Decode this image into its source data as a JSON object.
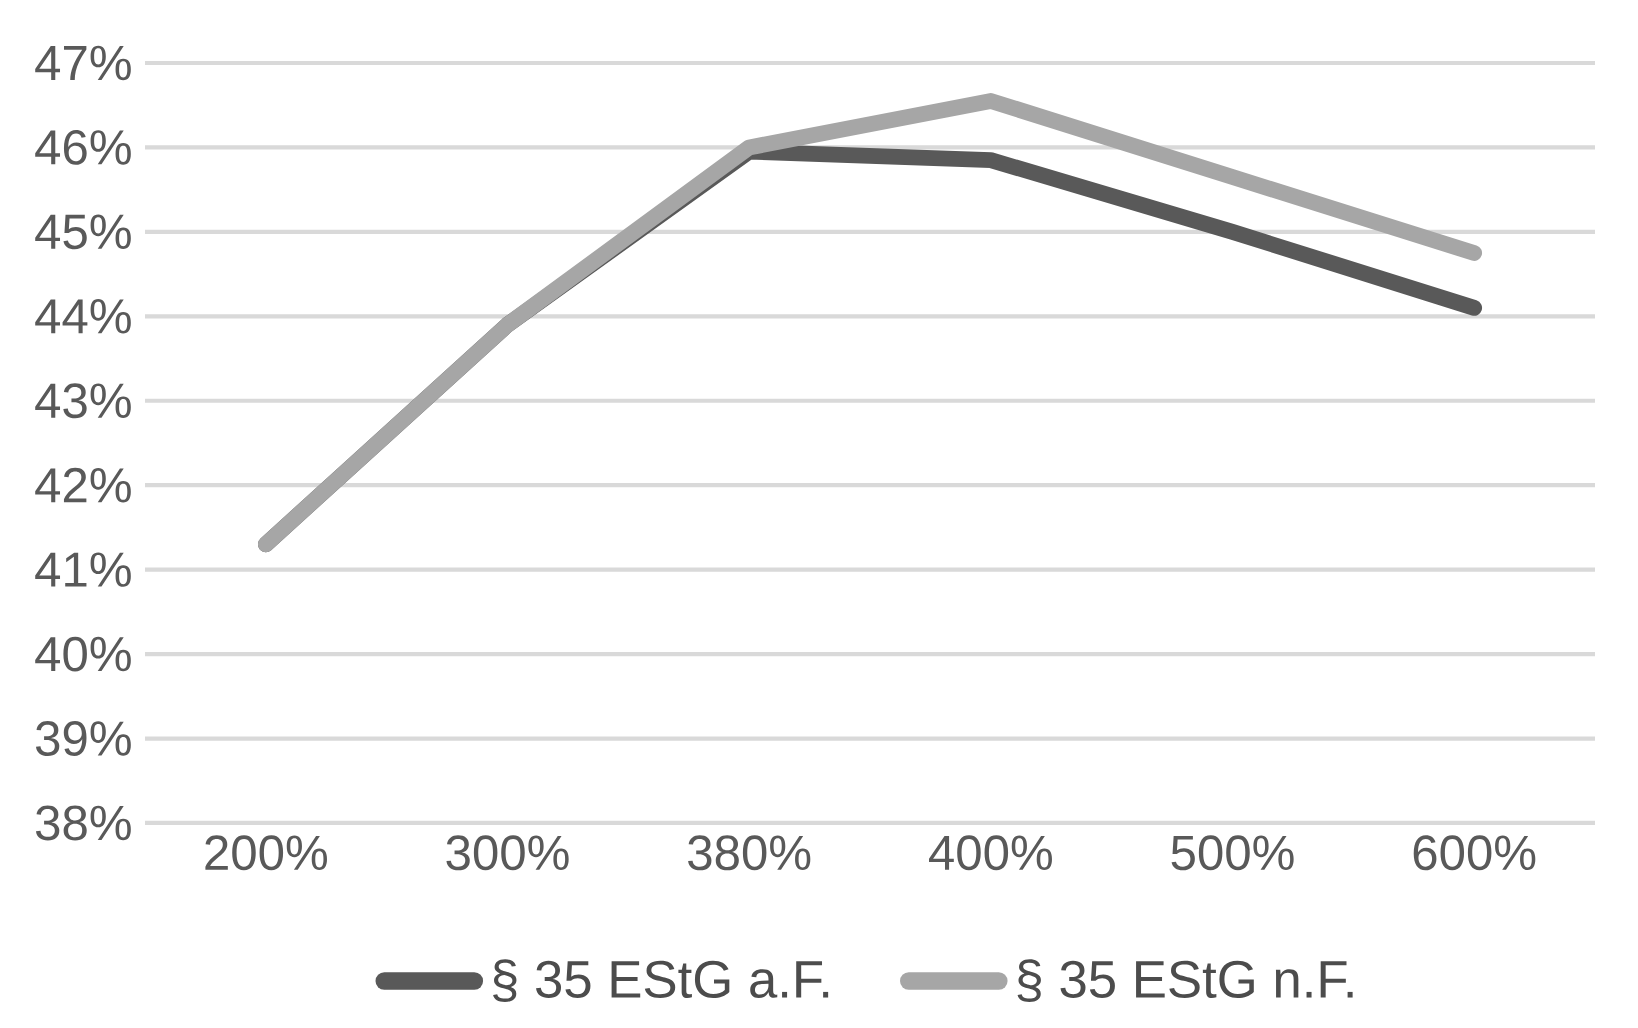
{
  "chart_data": {
    "type": "line",
    "categories": [
      "200%",
      "300%",
      "380%",
      "400%",
      "500%",
      "600%"
    ],
    "series": [
      {
        "name": "§ 35 EStG a.F.",
        "color": "#595959",
        "values": [
          41.3,
          43.9,
          45.95,
          45.85,
          45.0,
          44.1
        ]
      },
      {
        "name": "§ 35 EStG n.F.",
        "color": "#a6a6a6",
        "values": [
          41.3,
          43.9,
          46.0,
          46.55,
          45.65,
          44.75
        ]
      }
    ],
    "ylim": [
      38,
      47
    ],
    "yticks": [
      {
        "value": 38,
        "label": "38%"
      },
      {
        "value": 39,
        "label": "39%"
      },
      {
        "value": 40,
        "label": "40%"
      },
      {
        "value": 41,
        "label": "41%"
      },
      {
        "value": 42,
        "label": "42%"
      },
      {
        "value": 43,
        "label": "43%"
      },
      {
        "value": 44,
        "label": "44%"
      },
      {
        "value": 45,
        "label": "45%"
      },
      {
        "value": 46,
        "label": "46%"
      },
      {
        "value": 47,
        "label": "47%"
      }
    ],
    "grid": "y",
    "legend": "bottom",
    "marker": "none",
    "line_style": "solid"
  }
}
